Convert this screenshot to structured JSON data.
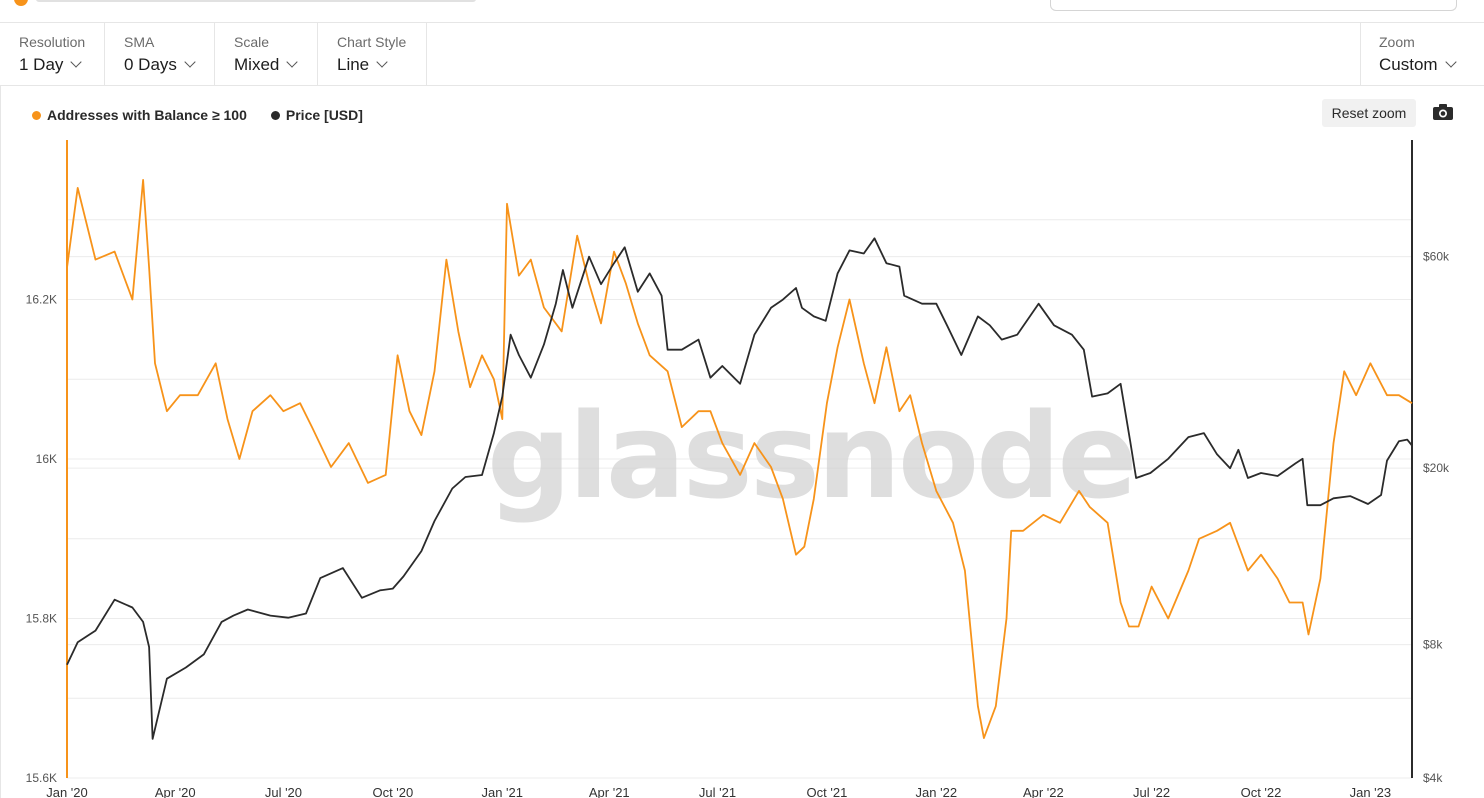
{
  "toolbar": {
    "resolution": {
      "label": "Resolution",
      "value": "1 Day"
    },
    "sma": {
      "label": "SMA",
      "value": "0 Days"
    },
    "scale": {
      "label": "Scale",
      "value": "Mixed"
    },
    "chart_style": {
      "label": "Chart Style",
      "value": "Line"
    },
    "zoom": {
      "label": "Zoom",
      "value": "Custom"
    }
  },
  "reset_zoom_label": "Reset zoom",
  "icons": {
    "camera": "camera-icon",
    "chevron": "chevron-down-icon"
  },
  "colors": {
    "addresses": "#f7931a",
    "price": "#2b2b2b",
    "grid": "#ececec"
  },
  "watermark": "glassnode",
  "chart_data": {
    "type": "line",
    "legend_position": "top-left",
    "grid": true,
    "x_tick_labels": [
      "Jan '20",
      "Apr '20",
      "Jul '20",
      "Oct '20",
      "Jan '21",
      "Apr '21",
      "Jul '21",
      "Oct '21",
      "Jan '22",
      "Apr '22",
      "Jul '22",
      "Oct '22",
      "Jan '23"
    ],
    "x_range": [
      "2020-01-01",
      "2023-02-05"
    ],
    "left_axis": {
      "ticks": [
        "16.2K",
        "16K",
        "15.8K",
        "15.6K"
      ],
      "tick_values": [
        16200,
        16000,
        15800,
        15600
      ],
      "range": [
        15600,
        16400
      ]
    },
    "right_axis": {
      "scale": "log",
      "ticks": [
        "$60k",
        "$20k",
        "$8k",
        "$4k"
      ],
      "tick_values": [
        60000,
        20000,
        8000,
        4000
      ],
      "range": [
        4000,
        110000
      ]
    },
    "series": [
      {
        "name": "Addresses with Balance ≥ 100",
        "axis": "left",
        "color": "#f7931a",
        "x": [
          "2020-01-01",
          "2020-01-10",
          "2020-01-25",
          "2020-02-10",
          "2020-02-25",
          "2020-03-05",
          "2020-03-10",
          "2020-03-15",
          "2020-03-25",
          "2020-04-05",
          "2020-04-20",
          "2020-05-05",
          "2020-05-15",
          "2020-05-25",
          "2020-06-05",
          "2020-06-20",
          "2020-07-01",
          "2020-07-15",
          "2020-07-25",
          "2020-08-10",
          "2020-08-25",
          "2020-09-10",
          "2020-09-25",
          "2020-10-05",
          "2020-10-15",
          "2020-10-25",
          "2020-11-05",
          "2020-11-15",
          "2020-11-25",
          "2020-12-05",
          "2020-12-15",
          "2020-12-25",
          "2021-01-01",
          "2021-01-05",
          "2021-01-15",
          "2021-01-25",
          "2021-02-05",
          "2021-02-20",
          "2021-03-05",
          "2021-03-15",
          "2021-03-25",
          "2021-04-05",
          "2021-04-15",
          "2021-04-25",
          "2021-05-05",
          "2021-05-20",
          "2021-06-01",
          "2021-06-15",
          "2021-06-25",
          "2021-07-05",
          "2021-07-20",
          "2021-08-01",
          "2021-08-15",
          "2021-08-25",
          "2021-09-05",
          "2021-09-12",
          "2021-09-20",
          "2021-10-01",
          "2021-10-10",
          "2021-10-20",
          "2021-11-01",
          "2021-11-10",
          "2021-11-20",
          "2021-12-01",
          "2021-12-10",
          "2021-12-20",
          "2022-01-01",
          "2022-01-15",
          "2022-01-25",
          "2022-02-05",
          "2022-02-10",
          "2022-02-20",
          "2022-03-01",
          "2022-03-05",
          "2022-03-15",
          "2022-04-01",
          "2022-04-15",
          "2022-05-01",
          "2022-05-10",
          "2022-05-25",
          "2022-06-05",
          "2022-06-12",
          "2022-06-20",
          "2022-07-01",
          "2022-07-15",
          "2022-08-01",
          "2022-08-10",
          "2022-08-25",
          "2022-09-05",
          "2022-09-20",
          "2022-10-01",
          "2022-10-15",
          "2022-10-25",
          "2022-11-05",
          "2022-11-10",
          "2022-11-20",
          "2022-12-01",
          "2022-12-10",
          "2022-12-20",
          "2023-01-01",
          "2023-01-15",
          "2023-01-25",
          "2023-02-05"
        ],
        "values": [
          16240,
          16340,
          16250,
          16260,
          16200,
          16350,
          16240,
          16120,
          16060,
          16080,
          16080,
          16120,
          16050,
          16000,
          16060,
          16080,
          16060,
          16070,
          16040,
          15990,
          16020,
          15970,
          15980,
          16130,
          16060,
          16030,
          16110,
          16250,
          16160,
          16090,
          16130,
          16100,
          16050,
          16320,
          16230,
          16250,
          16190,
          16160,
          16280,
          16220,
          16170,
          16260,
          16220,
          16170,
          16130,
          16110,
          16040,
          16060,
          16060,
          16020,
          15980,
          16020,
          15990,
          15950,
          15880,
          15890,
          15950,
          16070,
          16140,
          16200,
          16120,
          16070,
          16140,
          16060,
          16080,
          16020,
          15960,
          15920,
          15860,
          15690,
          15650,
          15690,
          15800,
          15910,
          15910,
          15930,
          15920,
          15960,
          15940,
          15920,
          15820,
          15790,
          15790,
          15840,
          15800,
          15860,
          15900,
          15910,
          15920,
          15860,
          15880,
          15850,
          15820,
          15820,
          15780,
          15850,
          16020,
          16110,
          16080,
          16120,
          16080,
          16080,
          16070
        ]
      },
      {
        "name": "Price [USD]",
        "axis": "right",
        "color": "#2b2b2b",
        "x": [
          "2020-01-01",
          "2020-01-10",
          "2020-01-25",
          "2020-02-10",
          "2020-02-25",
          "2020-03-05",
          "2020-03-10",
          "2020-03-13",
          "2020-03-25",
          "2020-04-10",
          "2020-04-25",
          "2020-05-10",
          "2020-05-20",
          "2020-06-01",
          "2020-06-20",
          "2020-07-05",
          "2020-07-20",
          "2020-08-01",
          "2020-08-20",
          "2020-09-05",
          "2020-09-20",
          "2020-10-01",
          "2020-10-10",
          "2020-10-25",
          "2020-11-05",
          "2020-11-20",
          "2020-12-01",
          "2020-12-15",
          "2020-12-25",
          "2021-01-01",
          "2021-01-08",
          "2021-01-15",
          "2021-01-25",
          "2021-02-05",
          "2021-02-15",
          "2021-02-21",
          "2021-03-01",
          "2021-03-15",
          "2021-03-25",
          "2021-04-05",
          "2021-04-14",
          "2021-04-25",
          "2021-05-05",
          "2021-05-15",
          "2021-05-20",
          "2021-06-01",
          "2021-06-15",
          "2021-06-25",
          "2021-07-05",
          "2021-07-20",
          "2021-08-01",
          "2021-08-15",
          "2021-08-25",
          "2021-09-05",
          "2021-09-10",
          "2021-09-20",
          "2021-09-30",
          "2021-10-10",
          "2021-10-20",
          "2021-11-01",
          "2021-11-10",
          "2021-11-20",
          "2021-12-01",
          "2021-12-05",
          "2021-12-20",
          "2022-01-01",
          "2022-01-10",
          "2022-01-22",
          "2022-02-05",
          "2022-02-15",
          "2022-02-25",
          "2022-03-10",
          "2022-03-28",
          "2022-04-10",
          "2022-04-25",
          "2022-05-05",
          "2022-05-12",
          "2022-05-25",
          "2022-06-05",
          "2022-06-13",
          "2022-06-18",
          "2022-06-30",
          "2022-07-15",
          "2022-08-01",
          "2022-08-14",
          "2022-08-25",
          "2022-09-05",
          "2022-09-12",
          "2022-09-20",
          "2022-10-01",
          "2022-10-15",
          "2022-10-30",
          "2022-11-05",
          "2022-11-09",
          "2022-11-20",
          "2022-12-01",
          "2022-12-15",
          "2022-12-30",
          "2023-01-10",
          "2023-01-15",
          "2023-01-25",
          "2023-02-01",
          "2023-02-05"
        ],
        "values": [
          7200,
          8100,
          8600,
          10100,
          9700,
          9000,
          7900,
          4900,
          6700,
          7100,
          7600,
          9000,
          9300,
          9600,
          9300,
          9200,
          9400,
          11300,
          11900,
          10200,
          10600,
          10700,
          11400,
          13000,
          15200,
          18000,
          19100,
          19300,
          24000,
          29000,
          40000,
          36000,
          32000,
          38000,
          47000,
          56000,
          46000,
          60000,
          52000,
          58000,
          63000,
          50000,
          55000,
          49000,
          37000,
          37000,
          39000,
          32000,
          34000,
          31000,
          40000,
          46000,
          48000,
          51000,
          46000,
          44000,
          43000,
          55000,
          62000,
          61000,
          66000,
          58000,
          57000,
          49000,
          47000,
          47000,
          42000,
          36000,
          44000,
          42000,
          39000,
          40000,
          47000,
          42000,
          40000,
          37000,
          29000,
          29500,
          31000,
          23000,
          19000,
          19500,
          21000,
          23500,
          24000,
          21500,
          20000,
          22000,
          19000,
          19500,
          19200,
          20500,
          21000,
          16500,
          16500,
          17100,
          17300,
          16600,
          17400,
          20800,
          23000,
          23200,
          22500
        ]
      }
    ]
  }
}
